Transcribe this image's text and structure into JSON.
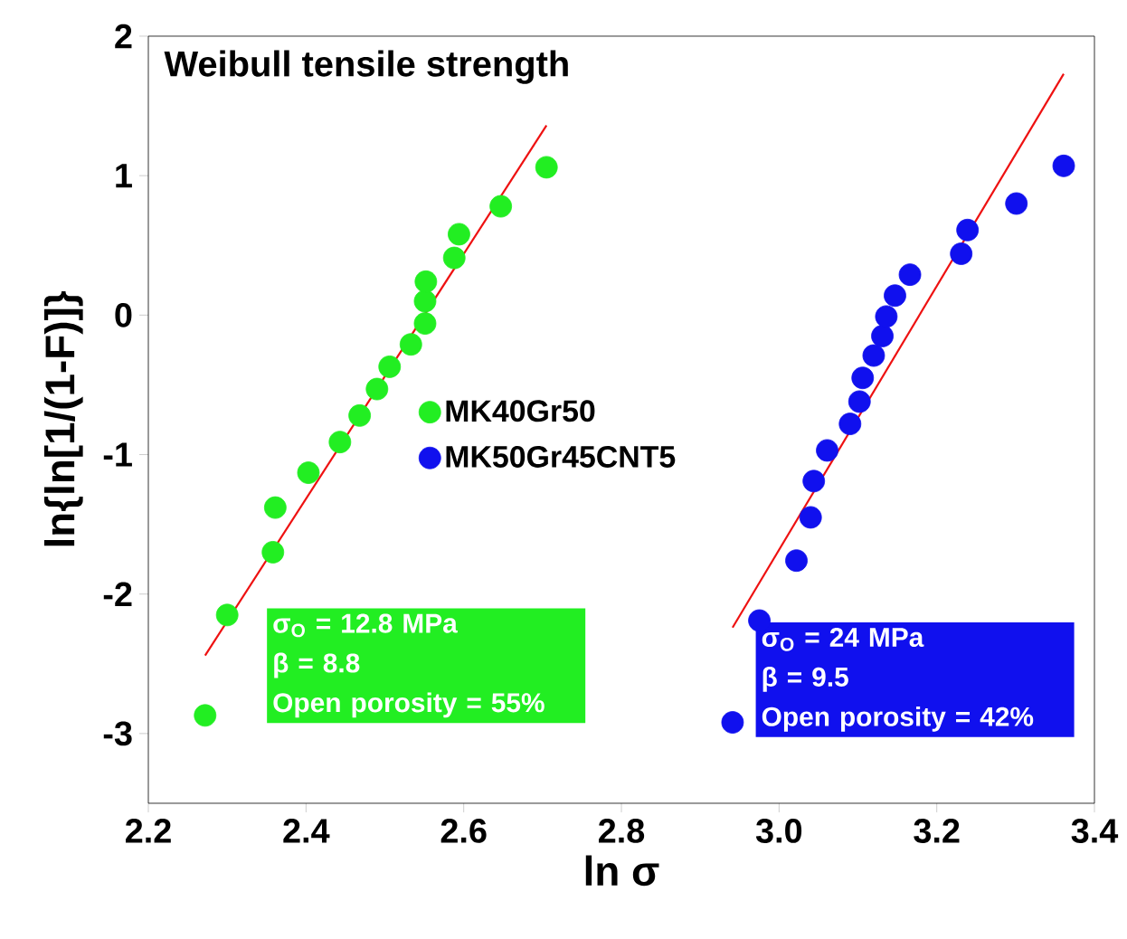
{
  "chart_data": {
    "type": "scatter",
    "title": "Weibull tensile strength",
    "xlabel": "ln σ",
    "ylabel": "ln{ln[1/(1-F)]}",
    "xlim": [
      2.2,
      3.4
    ],
    "ylim": [
      -3.5,
      2
    ],
    "xticks": [
      {
        "value": 2.2,
        "label": "2.2"
      },
      {
        "value": 2.4,
        "label": "2.4"
      },
      {
        "value": 2.6,
        "label": "2.6"
      },
      {
        "value": 2.8,
        "label": "2.8"
      },
      {
        "value": 3.0,
        "label": "3.0"
      },
      {
        "value": 3.2,
        "label": "3.2"
      },
      {
        "value": 3.4,
        "label": "3.4"
      }
    ],
    "yticks": [
      -3,
      -2,
      -1,
      0,
      1,
      2
    ],
    "legend": "center",
    "grid": false,
    "series": [
      {
        "name": "MK40Gr50",
        "color": "#22ee22",
        "marker": "circle",
        "x": [
          2.272,
          2.3,
          2.358,
          2.361,
          2.403,
          2.443,
          2.468,
          2.49,
          2.506,
          2.533,
          2.551,
          2.551,
          2.552,
          2.588,
          2.594,
          2.647,
          2.705
        ],
        "values": [
          -2.87,
          -2.15,
          -1.7,
          -1.38,
          -1.13,
          -0.91,
          -0.72,
          -0.53,
          -0.37,
          -0.21,
          -0.06,
          0.1,
          0.24,
          0.41,
          0.58,
          0.78,
          1.06
        ]
      },
      {
        "name": "MK50Gr45CNT5",
        "color": "#1010ee",
        "marker": "circle",
        "x": [
          2.941,
          2.975,
          3.022,
          3.04,
          3.044,
          3.061,
          3.09,
          3.102,
          3.106,
          3.12,
          3.131,
          3.136,
          3.147,
          3.166,
          3.231,
          3.239,
          3.301,
          3.361
        ],
        "values": [
          -2.92,
          -2.19,
          -1.76,
          -1.45,
          -1.19,
          -0.97,
          -0.78,
          -0.62,
          -0.45,
          -0.29,
          -0.15,
          -0.01,
          0.14,
          0.29,
          0.44,
          0.61,
          0.8,
          1.07
        ]
      },
      {
        "type": "line",
        "color": "#ee1111",
        "marker": "none",
        "x": [
          2.272,
          2.705
        ],
        "values": [
          -2.44,
          1.36
        ]
      },
      {
        "type": "line",
        "color": "#ee1111",
        "marker": "none",
        "x": [
          2.941,
          3.361
        ],
        "values": [
          -2.24,
          1.73
        ]
      }
    ],
    "annotations": [
      "σ$_{O}$ = 12.8 MPa",
      "β  = 8.8",
      "Open porosity = 55%",
      "σ$_{O}$ = 24 MPa",
      "β  = 9.5",
      "Open porosity = 42%"
    ]
  }
}
